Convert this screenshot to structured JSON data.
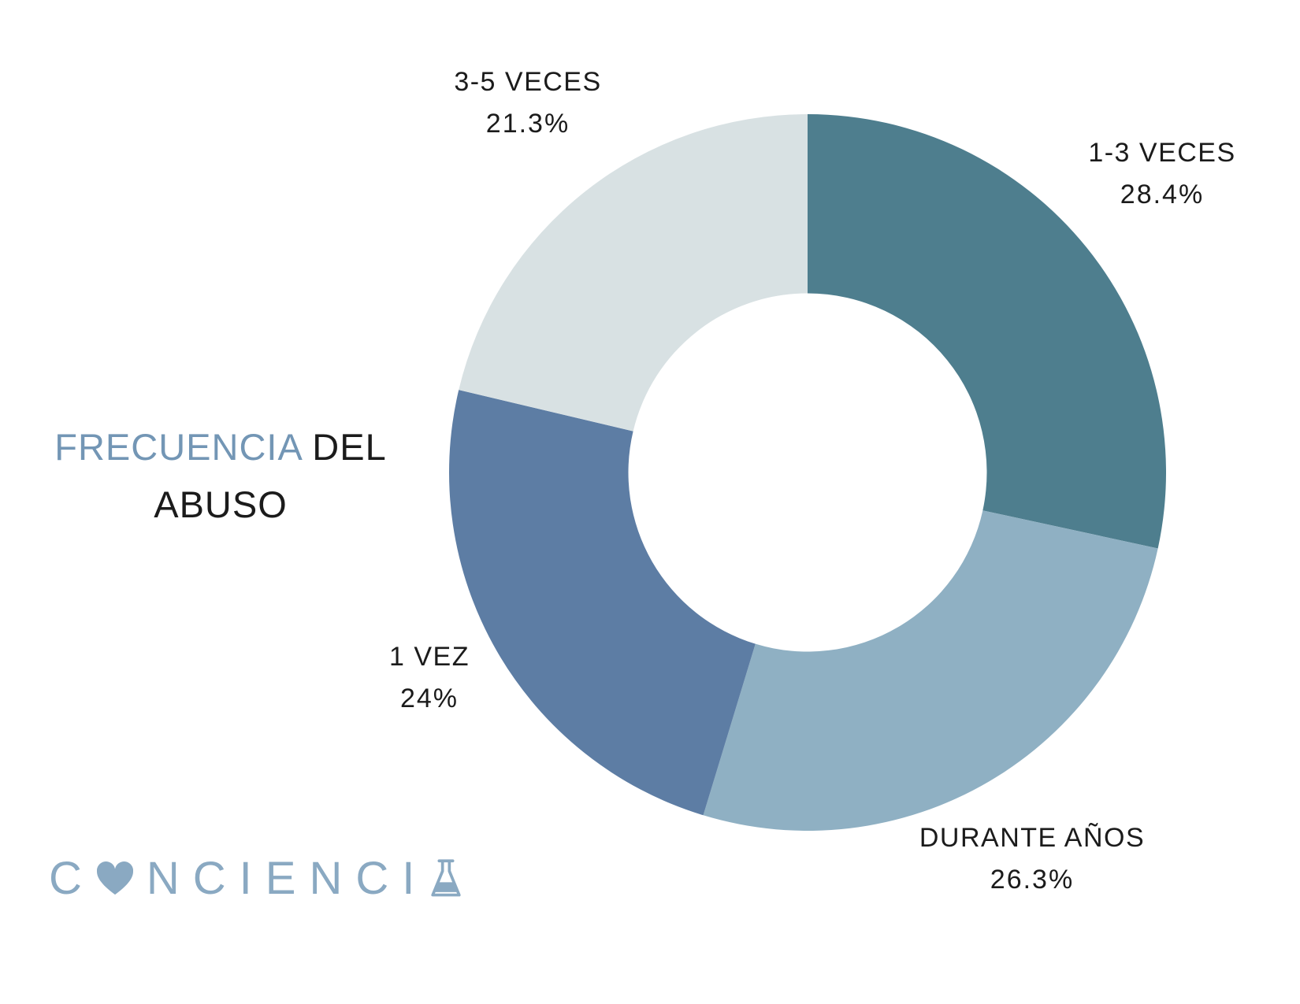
{
  "title": {
    "line1_highlight": "FRECUENCIA",
    "line1_rest": " DEL",
    "line2": "ABUSO"
  },
  "brand": {
    "part1": "C",
    "part2": "NCIENCI",
    "heart_icon": "heart",
    "flask_icon": "erlenmeyer-flask"
  },
  "colors": {
    "title_accent": "#7396b5",
    "brand_blue": "#8aa9c2",
    "text": "#1b1b1b"
  },
  "chart_data": {
    "type": "pie",
    "subtype": "donut",
    "title": "FRECUENCIA DEL ABUSO",
    "categories": [
      "1-3 VECES",
      "DURANTE AÑOS",
      "1 VEZ",
      "3-5 VECES"
    ],
    "values": [
      28.4,
      26.3,
      24,
      21.3
    ],
    "colors": [
      "#4e7e8e",
      "#8fb0c3",
      "#5d7da4",
      "#d8e1e3"
    ],
    "start_angle_deg": 0,
    "direction": "clockwise",
    "inner_radius_ratio": 0.5,
    "legend_position": "none",
    "labels": [
      {
        "name": "1-3 VECES",
        "pct": "28.4%"
      },
      {
        "name": "DURANTE AÑOS",
        "pct": "26.3%"
      },
      {
        "name": "1 VEZ",
        "pct": "24%"
      },
      {
        "name": "3-5 VECES",
        "pct": "21.3%"
      }
    ]
  }
}
